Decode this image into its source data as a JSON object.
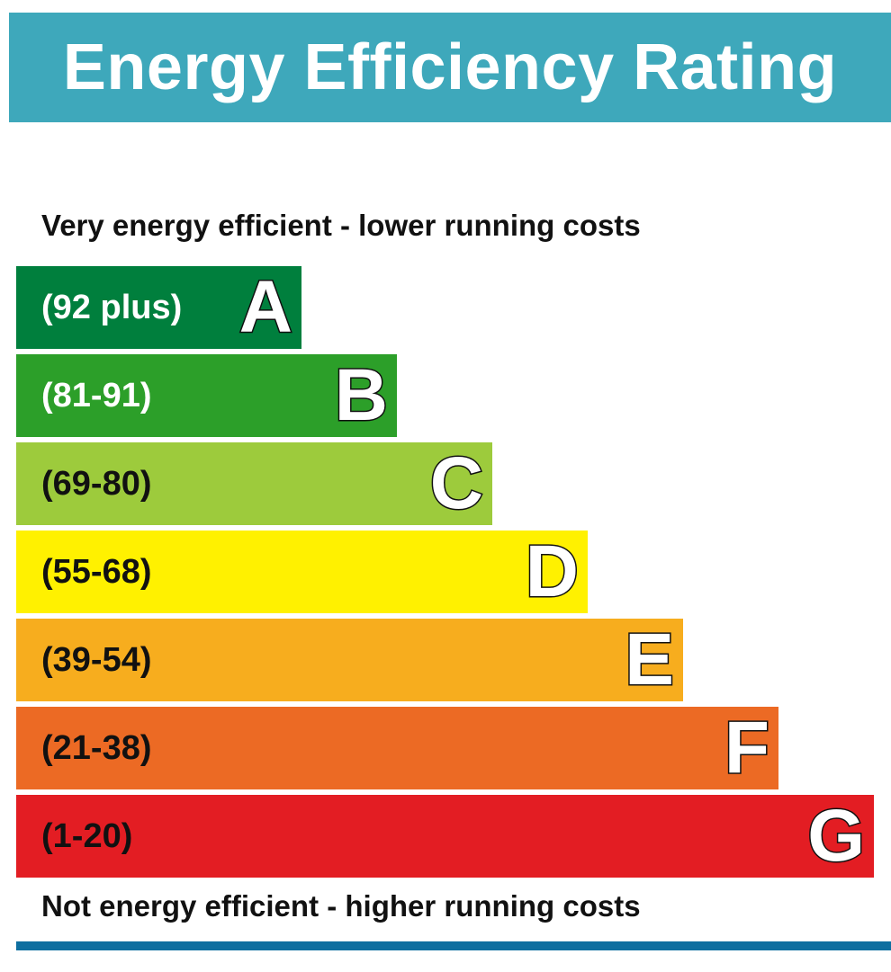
{
  "header": {
    "title": "Energy Efficiency Rating",
    "color": "#3ea8bb"
  },
  "captions": {
    "top": "Very energy efficient - lower running costs",
    "bottom": "Not energy efficient - higher running costs"
  },
  "footer": {
    "rule_color": "#0e6fa0"
  },
  "chart_data": {
    "type": "bar",
    "title": "Energy Efficiency Rating",
    "categories": [
      "A",
      "B",
      "C",
      "D",
      "E",
      "F",
      "G"
    ],
    "series": [
      {
        "values": [
          1,
          2,
          3,
          4,
          5,
          6,
          7
        ],
        "bands": [
          {
            "letter": "A",
            "range": "(92 plus)",
            "color": "#007f3d",
            "range_text_color": "#ffffff"
          },
          {
            "letter": "B",
            "range": "(81-91)",
            "color": "#2c9f29",
            "range_text_color": "#ffffff"
          },
          {
            "letter": "C",
            "range": "(69-80)",
            "color": "#9dcb3c",
            "range_text_color": "#111111"
          },
          {
            "letter": "D",
            "range": "(55-68)",
            "color": "#fff100",
            "range_text_color": "#111111"
          },
          {
            "letter": "E",
            "range": "(39-54)",
            "color": "#f7ad1e",
            "range_text_color": "#111111"
          },
          {
            "letter": "F",
            "range": "(21-38)",
            "color": "#ec6a24",
            "range_text_color": "#111111"
          },
          {
            "letter": "G",
            "range": "(1-20)",
            "color": "#e31d23",
            "range_text_color": "#111111"
          }
        ]
      }
    ],
    "orientation": "horizontal",
    "xlabel": "",
    "ylabel": ""
  }
}
